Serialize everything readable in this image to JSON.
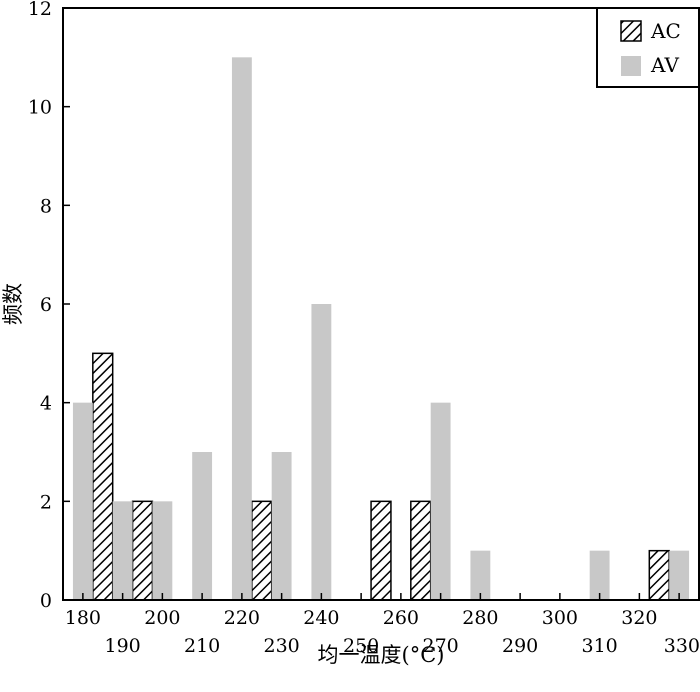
{
  "chart_data": {
    "type": "bar",
    "title": "",
    "xlabel": "均一温度(°C)",
    "ylabel": "频数",
    "xlim": [
      175,
      335
    ],
    "ylim": [
      0,
      12
    ],
    "x_ticks": [
      180,
      190,
      200,
      210,
      220,
      230,
      240,
      250,
      260,
      270,
      280,
      290,
      300,
      310,
      320,
      330
    ],
    "y_ticks": [
      0,
      2,
      4,
      6,
      8,
      10,
      12
    ],
    "legend_position": "top-right",
    "grid": false,
    "series": [
      {
        "name": "AC",
        "style": "hatched",
        "color": "#000000",
        "points": [
          {
            "x": 185,
            "y": 5
          },
          {
            "x": 195,
            "y": 2
          },
          {
            "x": 225,
            "y": 2
          },
          {
            "x": 255,
            "y": 2
          },
          {
            "x": 265,
            "y": 2
          },
          {
            "x": 325,
            "y": 1
          }
        ]
      },
      {
        "name": "AV",
        "style": "solid",
        "color": "#c8c8c8",
        "points": [
          {
            "x": 180,
            "y": 4
          },
          {
            "x": 190,
            "y": 2
          },
          {
            "x": 200,
            "y": 2
          },
          {
            "x": 210,
            "y": 3
          },
          {
            "x": 220,
            "y": 11
          },
          {
            "x": 230,
            "y": 3
          },
          {
            "x": 240,
            "y": 6
          },
          {
            "x": 270,
            "y": 4
          },
          {
            "x": 280,
            "y": 1
          },
          {
            "x": 310,
            "y": 1
          },
          {
            "x": 330,
            "y": 1
          }
        ]
      }
    ]
  }
}
